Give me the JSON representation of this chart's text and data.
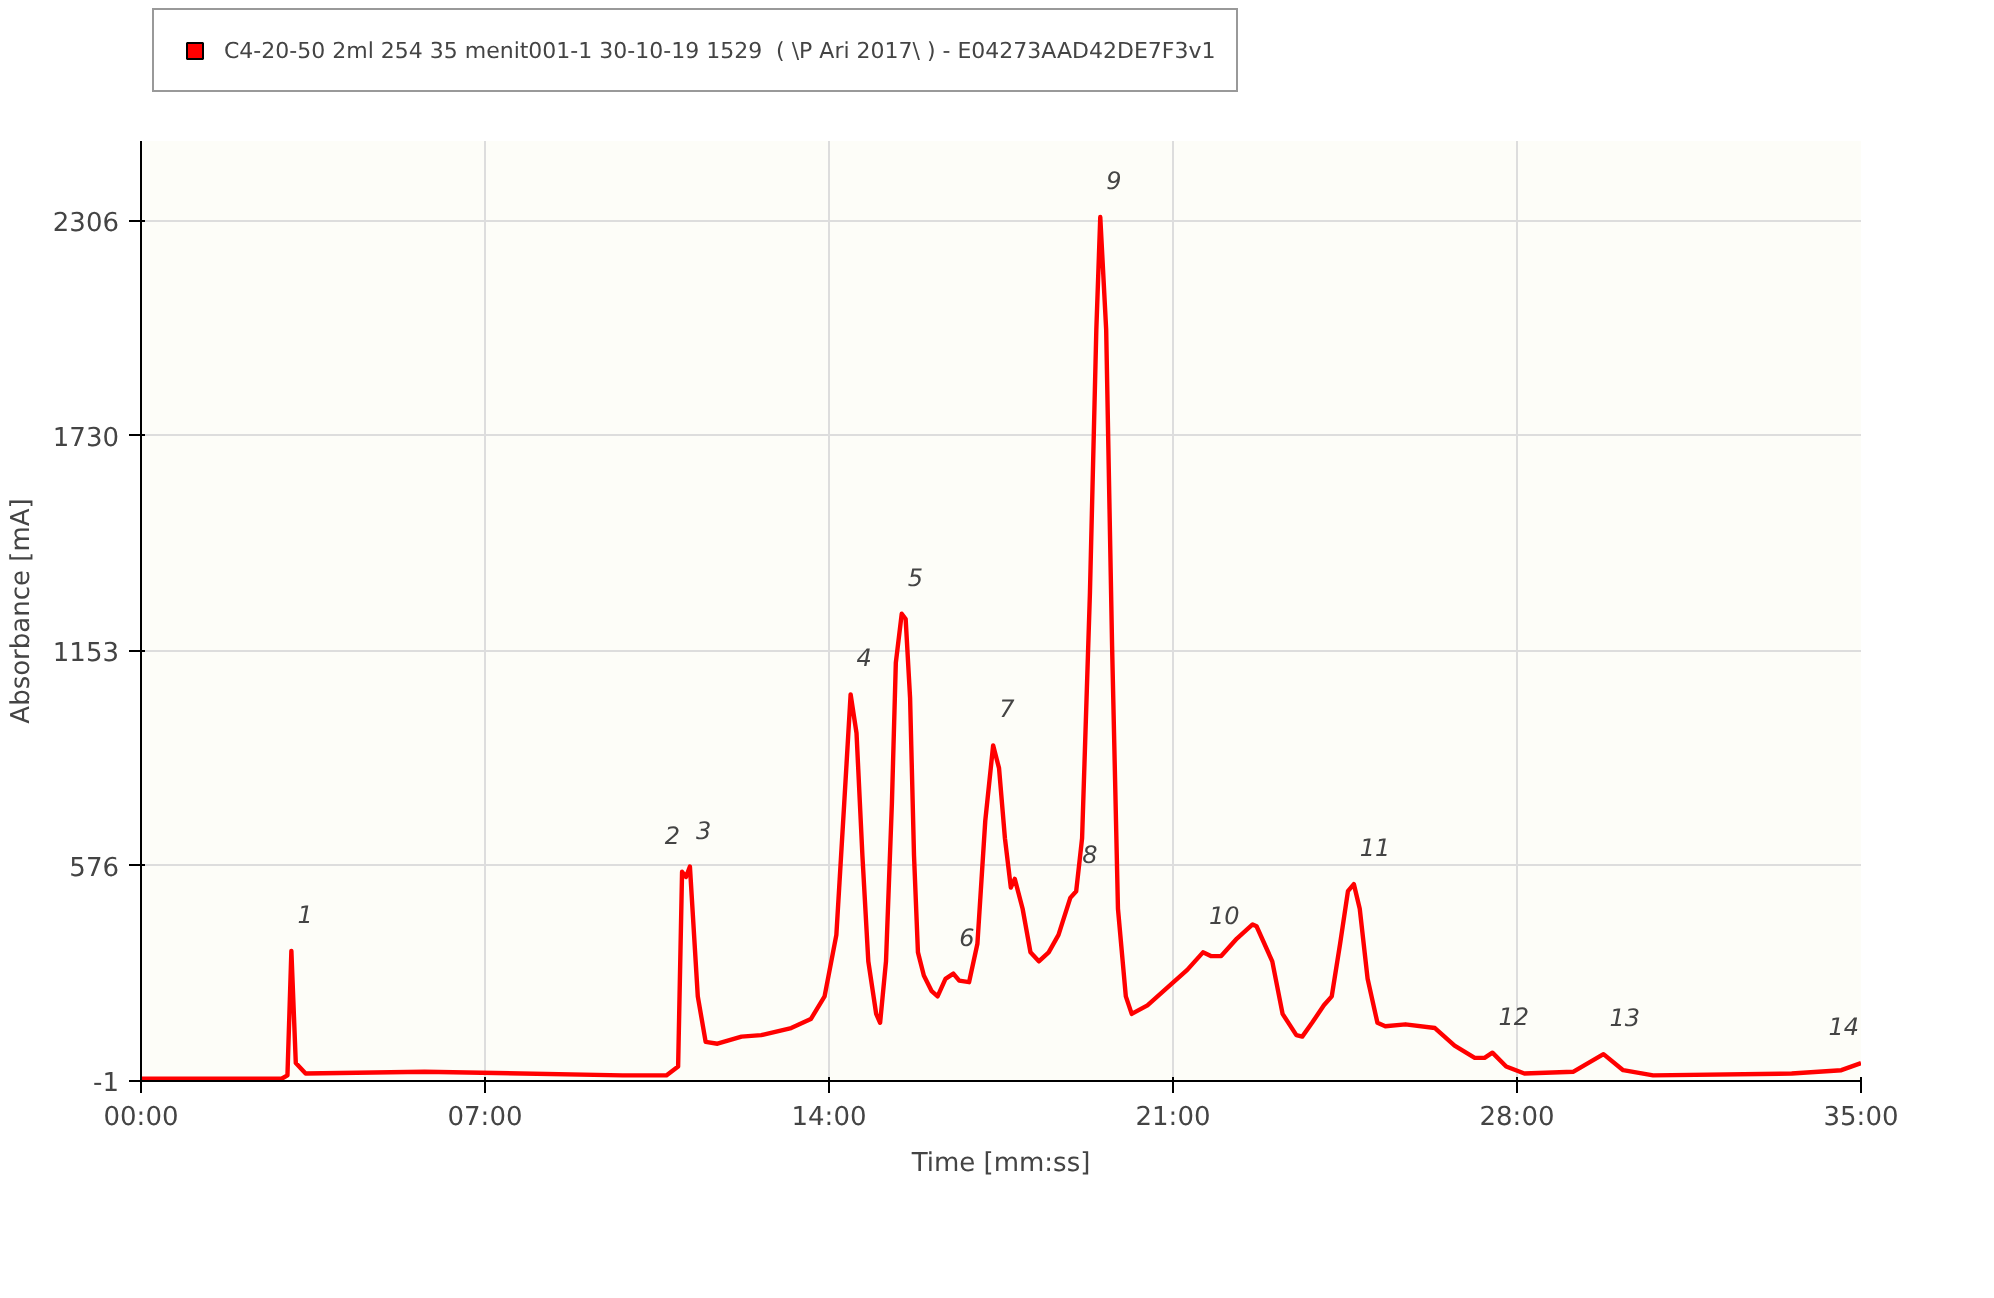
{
  "chart_data": {
    "type": "line",
    "xlabel": "Time [mm:ss]",
    "ylabel": "Absorbance [mA]",
    "xlim": [
      0,
      35
    ],
    "ylim": [
      -1,
      2520
    ],
    "xticks": [
      {
        "value": 0,
        "label": "00:00"
      },
      {
        "value": 7,
        "label": "07:00"
      },
      {
        "value": 14,
        "label": "14:00"
      },
      {
        "value": 21,
        "label": "21:00"
      },
      {
        "value": 28,
        "label": "28:00"
      },
      {
        "value": 35,
        "label": "35:00"
      }
    ],
    "yticks": [
      -1,
      576,
      1153,
      1730,
      2306
    ],
    "grid": true,
    "legend": "top left",
    "marker": "none",
    "line_style": "solid",
    "series": [
      {
        "name": "C4-20-50 2ml 254 35 menit001-1 30-10-19 1529  ( \\P Ari 2017\\ ) - E04273AAD42DE7F3v1",
        "color": "#ff0000",
        "x": [
          0.0,
          2.86,
          2.98,
          3.06,
          3.15,
          3.35,
          5.77,
          9.8,
          10.69,
          10.93,
          11.01,
          11.09,
          11.17,
          11.33,
          11.49,
          11.73,
          12.22,
          12.62,
          13.23,
          13.63,
          13.91,
          14.15,
          14.31,
          14.44,
          14.56,
          14.68,
          14.8,
          14.96,
          15.04,
          15.16,
          15.28,
          15.36,
          15.48,
          15.56,
          15.65,
          15.73,
          15.81,
          15.93,
          16.09,
          16.21,
          16.37,
          16.53,
          16.65,
          16.85,
          17.02,
          17.18,
          17.34,
          17.46,
          17.58,
          17.7,
          17.78,
          17.94,
          18.1,
          18.27,
          18.47,
          18.67,
          18.91,
          19.03,
          19.15,
          19.31,
          19.44,
          19.52,
          19.64,
          19.76,
          19.88,
          20.04,
          20.16,
          20.48,
          20.89,
          21.29,
          21.61,
          21.77,
          21.98,
          22.3,
          22.62,
          22.7,
          23.02,
          23.23,
          23.51,
          23.63,
          23.83,
          24.07,
          24.23,
          24.4,
          24.56,
          24.68,
          24.8,
          24.96,
          25.16,
          25.32,
          25.73,
          26.33,
          26.73,
          27.14,
          27.34,
          27.5,
          27.78,
          28.15,
          29.15,
          29.76,
          30.16,
          30.77,
          33.59,
          34.6,
          35.0
        ],
        "values": [
          5,
          5,
          14,
          348,
          47,
          19,
          24,
          14,
          14,
          38,
          560,
          546,
          574,
          226,
          104,
          99,
          118,
          122,
          141,
          165,
          226,
          391,
          744,
          1036,
          932,
          603,
          320,
          179,
          155,
          320,
          744,
          1121,
          1252,
          1238,
          1026,
          603,
          344,
          282,
          240,
          226,
          273,
          287,
          268,
          264,
          367,
          697,
          899,
          838,
          650,
          518,
          541,
          461,
          344,
          320,
          344,
          391,
          490,
          508,
          650,
          1309,
          2015,
          2316,
          2015,
          1168,
          461,
          226,
          179,
          202,
          250,
          297,
          344,
          334,
          334,
          381,
          419,
          414,
          320,
          179,
          122,
          118,
          155,
          202,
          226,
          367,
          508,
          527,
          461,
          273,
          155,
          146,
          151,
          141,
          94,
          61,
          61,
          75,
          38,
          19,
          24,
          71,
          28,
          14,
          19,
          28,
          47
        ]
      }
    ],
    "annotations": [
      {
        "text": "1",
        "x": 3.06,
        "y": 348
      },
      {
        "text": "2",
        "x": 11.01,
        "y": 560
      },
      {
        "text": "3",
        "x": 11.17,
        "y": 574
      },
      {
        "text": "4",
        "x": 14.44,
        "y": 1036
      },
      {
        "text": "5",
        "x": 15.48,
        "y": 1252
      },
      {
        "text": "6",
        "x": 16.53,
        "y": 287
      },
      {
        "text": "7",
        "x": 17.34,
        "y": 899
      },
      {
        "text": "8",
        "x": 19.03,
        "y": 508
      },
      {
        "text": "9",
        "x": 19.52,
        "y": 2316
      },
      {
        "text": "10",
        "x": 21.61,
        "y": 344
      },
      {
        "text": "11",
        "x": 24.68,
        "y": 527
      },
      {
        "text": "12",
        "x": 27.5,
        "y": 75
      },
      {
        "text": "13",
        "x": 29.76,
        "y": 71
      },
      {
        "text": "14",
        "x": 35,
        "y": 47
      }
    ]
  }
}
